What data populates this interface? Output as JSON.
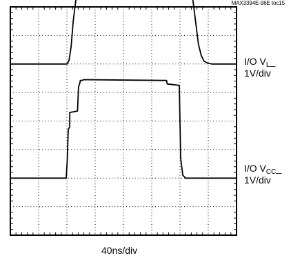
{
  "figure_id": "MAX3394E-96E toc15",
  "x_scale": "40ns/div",
  "chart_data": {
    "type": "line",
    "title": "",
    "xlabel": "40ns/div",
    "ylabel": "",
    "grid": true,
    "xlim": [
      0,
      320
    ],
    "x_divisions": 8,
    "y_divisions": 8,
    "x_unit": "ns",
    "series": [
      {
        "name": "I/O V_L_",
        "label_main": "I/O V",
        "label_sub": "L",
        "label_tail": "_",
        "scale": "1V/div",
        "baseline_div": 6.0,
        "volts_per_div": 1,
        "x": [
          0,
          80,
          83,
          86,
          89,
          93,
          97,
          100,
          104,
          250,
          254,
          258,
          262,
          266,
          270,
          274,
          279,
          285,
          320
        ],
        "y": [
          0,
          0,
          0.12,
          0.6,
          1.5,
          2.3,
          2.75,
          2.85,
          2.85,
          2.82,
          2.7,
          2.3,
          1.5,
          0.7,
          0.3,
          0.1,
          0.03,
          0,
          0
        ]
      },
      {
        "name": "I/O V_CC_",
        "label_main": "I/O V",
        "label_sub": "CC",
        "label_tail": "_",
        "scale": "1V/div",
        "baseline_div": 2.0,
        "volts_per_div": 1,
        "x": [
          0,
          79,
          80.5,
          82,
          84,
          84.1,
          95,
          96.5,
          98,
          99,
          101,
          104,
          221,
          222,
          239,
          240,
          241,
          244,
          248,
          320
        ],
        "y": [
          0,
          0,
          0.6,
          1.7,
          1.8,
          2.3,
          2.35,
          3.2,
          3.3,
          3.42,
          3.42,
          3.45,
          3.42,
          3.3,
          3.25,
          2.0,
          0.7,
          0.1,
          0,
          0
        ]
      }
    ]
  }
}
